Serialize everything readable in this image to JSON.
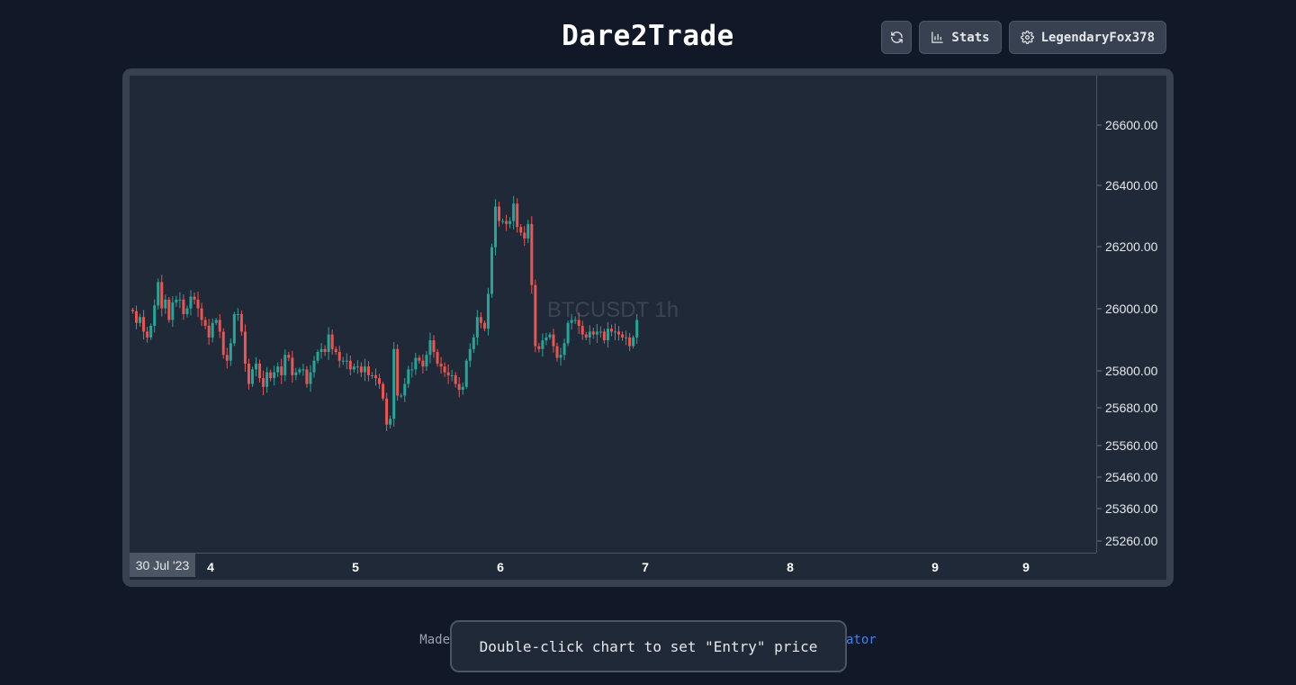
{
  "app": {
    "title": "Dare2Trade"
  },
  "toolbar": {
    "refresh_icon": "refresh-icon",
    "stats_label": "Stats",
    "user_label": "LegendaryFox378"
  },
  "chart_data": {
    "type": "candlestick",
    "title": "BTCUSDT 1h",
    "price_ticks": [
      "26600.00",
      "26400.00",
      "26200.00",
      "26000.00",
      "25800.00",
      "25680.00",
      "25560.00",
      "25460.00",
      "25360.00",
      "25260.00"
    ],
    "time_ticks": [
      "4",
      "5",
      "6",
      "7",
      "8",
      "9",
      "9"
    ],
    "date_label": "30 Jul '23",
    "ylim": [
      25120,
      26760
    ],
    "up_color": "#26a69a",
    "down_color": "#ef5350",
    "grid": false,
    "closes": [
      25950,
      25910,
      25930,
      25880,
      25860,
      25900,
      25970,
      26050,
      25960,
      25990,
      25920,
      25980,
      25990,
      25990,
      25940,
      25960,
      26000,
      25990,
      25960,
      25920,
      25900,
      25860,
      25910,
      25920,
      25880,
      25800,
      25780,
      25840,
      25940,
      25940,
      25880,
      25770,
      25700,
      25750,
      25770,
      25720,
      25690,
      25740,
      25720,
      25740,
      25760,
      25730,
      25800,
      25790,
      25730,
      25740,
      25750,
      25750,
      25700,
      25740,
      25780,
      25810,
      25820,
      25810,
      25870,
      25820,
      25810,
      25780,
      25780,
      25780,
      25750,
      25760,
      25760,
      25740,
      25760,
      25730,
      25730,
      25720,
      25700,
      25650,
      25560,
      25580,
      25820,
      25660,
      25660,
      25700,
      25750,
      25750,
      25790,
      25780,
      25760,
      25800,
      25850,
      25810,
      25770,
      25760,
      25740,
      25730,
      25730,
      25700,
      25680,
      25690,
      25780,
      25820,
      25860,
      25930,
      25910,
      25890,
      26010,
      26170,
      26310,
      26260,
      26260,
      26250,
      26260,
      26320,
      26240,
      26220,
      26200,
      26250,
      26040,
      25830,
      25820,
      25850,
      25860,
      25870,
      25830,
      25790,
      25800,
      25840,
      25910,
      25920,
      25920,
      25900,
      25870,
      25860,
      25880,
      25870,
      25880,
      25880,
      25850,
      25890,
      25880,
      25880,
      25870,
      25860,
      25860,
      25830,
      25860,
      25920
    ]
  },
  "footer": {
    "prefix": "Made",
    "suffix": "ator"
  },
  "toast": {
    "message": "Double-click chart to set \"Entry\" price"
  }
}
